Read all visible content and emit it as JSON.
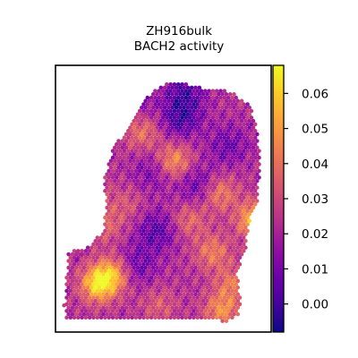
{
  "chart_data": {
    "type": "heatmap",
    "title_lines": [
      "ZH916bulk",
      "BACH2 activity"
    ],
    "colormap": "plasma",
    "colorbar": {
      "range": [
        -0.008,
        0.068
      ],
      "ticks": [
        {
          "value": 0.0,
          "label": "0.00"
        },
        {
          "value": 0.01,
          "label": "0.01"
        },
        {
          "value": 0.02,
          "label": "0.02"
        },
        {
          "value": 0.03,
          "label": "0.03"
        },
        {
          "value": 0.04,
          "label": "0.04"
        },
        {
          "value": 0.05,
          "label": "0.05"
        },
        {
          "value": 0.06,
          "label": "0.06"
        }
      ]
    },
    "axes": {
      "x_ticks": false,
      "y_ticks": false,
      "grid": false
    },
    "hotspots": [
      {
        "x": 0.2,
        "y": 0.82,
        "value": 0.062
      },
      {
        "x": 0.27,
        "y": 0.78,
        "value": 0.05
      },
      {
        "x": 0.06,
        "y": 0.32,
        "value": 0.052
      },
      {
        "x": 0.4,
        "y": 0.25,
        "value": 0.04
      },
      {
        "x": 0.55,
        "y": 0.36,
        "value": 0.048
      },
      {
        "x": 0.14,
        "y": 0.48,
        "value": 0.045
      },
      {
        "x": 0.76,
        "y": 0.48,
        "value": 0.044
      },
      {
        "x": 0.62,
        "y": 0.58,
        "value": 0.038
      },
      {
        "x": 0.73,
        "y": 0.7,
        "value": 0.042
      },
      {
        "x": 0.93,
        "y": 0.58,
        "value": 0.06
      },
      {
        "x": 0.82,
        "y": 0.82,
        "value": 0.04
      },
      {
        "x": 0.77,
        "y": 0.92,
        "value": 0.046
      },
      {
        "x": 0.23,
        "y": 0.6,
        "value": 0.036
      },
      {
        "x": 0.33,
        "y": 0.52,
        "value": 0.032
      },
      {
        "x": 0.48,
        "y": 0.9,
        "value": 0.034
      }
    ],
    "lowspots": [
      {
        "x": 0.58,
        "y": 0.2,
        "value": 0.002
      },
      {
        "x": 0.47,
        "y": 0.62,
        "value": 0.004
      },
      {
        "x": 0.15,
        "y": 0.12,
        "value": 0.001
      },
      {
        "x": 0.34,
        "y": 0.12,
        "value": 0.003
      },
      {
        "x": 0.6,
        "y": 0.1,
        "value": 0.004
      },
      {
        "x": 0.02,
        "y": 0.15,
        "value": 0.002
      },
      {
        "x": 0.66,
        "y": 0.45,
        "value": 0.006
      },
      {
        "x": 0.37,
        "y": 0.75,
        "value": 0.006
      },
      {
        "x": 0.8,
        "y": 0.3,
        "value": 0.008
      },
      {
        "x": 0.45,
        "y": 0.4,
        "value": 0.01
      }
    ],
    "base_value": 0.022
  }
}
